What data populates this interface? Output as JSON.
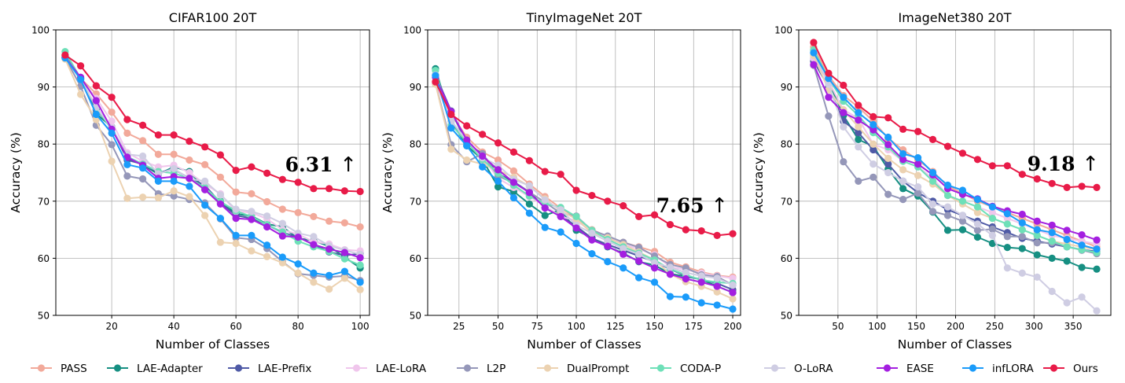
{
  "chart_data": [
    {
      "type": "line",
      "title": "CIFAR100 20T",
      "xlabel": "Number of Classes",
      "ylabel": "Accuracy (%)",
      "xlim": [
        2,
        103
      ],
      "ylim": [
        50,
        100
      ],
      "xticks": [
        20,
        40,
        60,
        80,
        100
      ],
      "yticks": [
        50,
        60,
        70,
        80,
        90,
        100
      ],
      "grid": true,
      "annotation": {
        "text": "6.31",
        "arrow": "↑"
      },
      "x": [
        5,
        10,
        15,
        20,
        25,
        30,
        35,
        40,
        45,
        50,
        55,
        60,
        65,
        70,
        75,
        80,
        85,
        90,
        95,
        100
      ],
      "series": [
        {
          "name": "PASS",
          "values": [
            95.4,
            91.5,
            88.8,
            85.6,
            81.9,
            80.6,
            78.2,
            78.2,
            77.2,
            76.4,
            74.2,
            71.6,
            71.3,
            69.9,
            68.6,
            68.0,
            67.3,
            66.5,
            66.2,
            65.5
          ]
        },
        {
          "name": "LAE-Adapter",
          "values": [
            95.6,
            91.5,
            85.3,
            83.0,
            77.4,
            76.4,
            74.7,
            76.0,
            75.2,
            72.1,
            70.0,
            67.8,
            67.4,
            66.0,
            65.5,
            63.5,
            63.1,
            62.1,
            60.2,
            58.3
          ]
        },
        {
          "name": "LAE-Prefix",
          "values": [
            95.2,
            91.5,
            86.0,
            82.9,
            77.2,
            76.5,
            75.0,
            75.6,
            74.0,
            72.8,
            69.7,
            67.5,
            67.0,
            65.9,
            64.5,
            63.7,
            62.4,
            61.1,
            60.5,
            60.8
          ]
        },
        {
          "name": "LAE-LoRA",
          "values": [
            95.0,
            91.5,
            88.0,
            84.0,
            78.5,
            77.0,
            76.0,
            76.3,
            75.0,
            73.0,
            71.3,
            68.2,
            68.0,
            66.9,
            65.0,
            64.2,
            62.9,
            62.5,
            61.5,
            61.3
          ]
        },
        {
          "name": "L2P",
          "values": [
            95.1,
            90.1,
            83.3,
            79.9,
            74.4,
            73.9,
            71.3,
            70.9,
            70.3,
            69.7,
            66.9,
            63.6,
            63.3,
            61.7,
            59.4,
            57.3,
            57.0,
            56.7,
            56.9,
            56.1
          ]
        },
        {
          "name": "DualPrompt",
          "values": [
            94.9,
            88.7,
            84.3,
            77.0,
            70.5,
            70.7,
            70.6,
            71.8,
            70.8,
            67.5,
            62.8,
            62.6,
            61.3,
            60.3,
            59.2,
            57.4,
            55.8,
            54.6,
            56.5,
            54.5
          ]
        },
        {
          "name": "CODA-P",
          "values": [
            96.2,
            91.5,
            86.3,
            82.6,
            77.8,
            76.5,
            75.2,
            74.9,
            74.0,
            72.4,
            69.9,
            68.3,
            67.3,
            65.9,
            64.6,
            63.0,
            62.0,
            61.2,
            59.9,
            58.8
          ]
        },
        {
          "name": "O-LoRA",
          "values": [
            95.4,
            91.3,
            86.5,
            82.8,
            78.2,
            77.9,
            74.8,
            75.7,
            73.9,
            73.5,
            71.1,
            68.6,
            68.2,
            67.4,
            66.1,
            64.4,
            63.8,
            62.2,
            61.4,
            60.7
          ]
        },
        {
          "name": "EASE",
          "values": [
            95.2,
            91.7,
            87.6,
            82.6,
            77.7,
            76.3,
            74.0,
            74.3,
            74.0,
            72.0,
            69.5,
            67.0,
            66.8,
            65.5,
            63.9,
            63.7,
            62.4,
            61.6,
            61.0,
            60.1
          ]
        },
        {
          "name": "infLORA",
          "values": [
            95.1,
            91.3,
            85.2,
            81.9,
            76.4,
            75.8,
            73.5,
            73.5,
            72.6,
            69.3,
            67.0,
            64.0,
            64.0,
            62.3,
            60.2,
            59.0,
            57.4,
            57.0,
            57.7,
            55.8
          ]
        },
        {
          "name": "Ours",
          "values": [
            95.6,
            93.7,
            90.2,
            88.2,
            84.3,
            83.3,
            81.6,
            81.6,
            80.5,
            79.5,
            78.1,
            75.4,
            76.0,
            74.9,
            73.8,
            73.3,
            72.2,
            72.2,
            71.8,
            71.7
          ]
        }
      ]
    },
    {
      "type": "line",
      "title": "TinyImageNet 20T",
      "xlabel": "Number of Classes",
      "ylabel": "Accuracy (%)",
      "xlim": [
        5,
        205
      ],
      "ylim": [
        50,
        100
      ],
      "xticks": [
        25,
        50,
        75,
        100,
        125,
        150,
        175,
        200
      ],
      "yticks": [
        50,
        60,
        70,
        80,
        90,
        100
      ],
      "grid": true,
      "annotation": {
        "text": "7.65",
        "arrow": "↑"
      },
      "x": [
        10,
        20,
        30,
        40,
        50,
        60,
        70,
        80,
        90,
        100,
        110,
        120,
        130,
        140,
        150,
        160,
        170,
        180,
        190,
        200
      ],
      "series": [
        {
          "name": "PASS",
          "values": [
            91.0,
            85.2,
            81.2,
            78.6,
            77.2,
            75.3,
            73.0,
            70.8,
            68.8,
            67.1,
            65.0,
            63.8,
            62.8,
            62.0,
            61.2,
            59.3,
            58.5,
            57.6,
            57.0,
            56.7
          ]
        },
        {
          "name": "LAE-Adapter",
          "values": [
            93.2,
            84.0,
            79.7,
            77.3,
            72.5,
            71.7,
            69.5,
            67.5,
            68.5,
            64.9,
            63.6,
            62.0,
            60.9,
            59.4,
            58.8,
            57.3,
            56.8,
            56.3,
            55.1,
            54.0
          ]
        },
        {
          "name": "LAE-Prefix",
          "values": [
            92.1,
            85.8,
            80.1,
            78.3,
            74.8,
            73.4,
            71.6,
            68.9,
            67.5,
            65.6,
            63.5,
            62.4,
            61.4,
            60.4,
            59.4,
            58.1,
            56.9,
            56.3,
            55.6,
            54.5
          ]
        },
        {
          "name": "LAE-LoRA",
          "values": [
            90.8,
            84.1,
            80.5,
            77.8,
            74.0,
            72.4,
            70.8,
            69.2,
            67.3,
            66.6,
            64.7,
            63.7,
            62.5,
            61.6,
            60.6,
            58.5,
            58.0,
            57.4,
            56.9,
            56.5
          ]
        },
        {
          "name": "L2P",
          "values": [
            90.6,
            79.9,
            76.9,
            78.3,
            74.4,
            73.2,
            71.6,
            69.8,
            67.9,
            67.4,
            64.9,
            63.9,
            62.8,
            61.9,
            60.4,
            58.9,
            58.3,
            57.1,
            56.8,
            55.3
          ]
        },
        {
          "name": "DualPrompt",
          "values": [
            90.5,
            79.1,
            77.2,
            76.5,
            75.4,
            74.2,
            72.6,
            70.4,
            68.3,
            66.9,
            64.4,
            63.6,
            62.4,
            61.1,
            59.7,
            57.2,
            55.9,
            55.1,
            54.1,
            52.9
          ]
        },
        {
          "name": "CODA-P",
          "values": [
            92.9,
            83.4,
            80.3,
            77.3,
            74.9,
            72.8,
            70.9,
            69.6,
            68.9,
            67.3,
            64.9,
            63.3,
            62.0,
            60.9,
            59.7,
            58.1,
            57.1,
            56.2,
            55.8,
            55.6
          ]
        },
        {
          "name": "O-LoRA",
          "values": [
            92.1,
            84.0,
            80.7,
            77.6,
            76.3,
            73.8,
            72.7,
            70.2,
            68.5,
            65.8,
            64.4,
            63.0,
            61.7,
            60.7,
            59.2,
            58.4,
            57.5,
            56.9,
            56.5,
            55.3
          ]
        },
        {
          "name": "EASE",
          "values": [
            91.7,
            85.7,
            80.7,
            77.9,
            75.5,
            73.3,
            71.5,
            68.8,
            67.3,
            65.3,
            63.2,
            62.1,
            60.7,
            59.5,
            58.3,
            57.2,
            56.4,
            55.8,
            55.1,
            54.0
          ]
        },
        {
          "name": "infLORA",
          "values": [
            92.0,
            82.8,
            79.7,
            76.0,
            73.5,
            70.6,
            67.9,
            65.4,
            64.6,
            62.6,
            60.8,
            59.4,
            58.3,
            56.6,
            55.8,
            53.3,
            53.2,
            52.2,
            51.8,
            51.1
          ]
        },
        {
          "name": "Ours",
          "values": [
            90.9,
            85.2,
            83.2,
            81.7,
            80.2,
            78.6,
            77.1,
            75.2,
            74.7,
            71.9,
            71.0,
            70.0,
            69.2,
            67.3,
            67.6,
            65.9,
            65.0,
            64.8,
            64.0,
            64.3
          ]
        }
      ]
    },
    {
      "type": "line",
      "title": "ImageNet380 20T",
      "xlabel": "Number of Classes",
      "ylabel": "Accuracy (%)",
      "xlim": [
        0,
        398
      ],
      "ylim": [
        50,
        100
      ],
      "xticks": [
        50,
        100,
        150,
        200,
        250,
        300,
        350
      ],
      "yticks": [
        50,
        60,
        70,
        80,
        90,
        100
      ],
      "grid": true,
      "annotation": {
        "text": "9.18",
        "arrow": "↑"
      },
      "x": [
        19,
        38,
        57,
        76,
        95,
        114,
        133,
        152,
        171,
        190,
        209,
        228,
        247,
        266,
        285,
        304,
        323,
        342,
        361,
        380
      ],
      "series": [
        {
          "name": "PASS",
          "values": [
            97.0,
            92.0,
            88.5,
            86.5,
            84.0,
            81.0,
            79.0,
            77.2,
            75.2,
            72.6,
            71.4,
            70.0,
            69.0,
            68.0,
            67.0,
            66.0,
            65.0,
            64.0,
            63.0,
            62.0
          ]
        },
        {
          "name": "LAE-Adapter",
          "values": [
            95.0,
            91.0,
            85.0,
            80.8,
            79.6,
            75.6,
            72.2,
            70.9,
            68.1,
            64.9,
            65.0,
            63.7,
            62.6,
            61.9,
            61.7,
            60.6,
            60.0,
            59.5,
            58.4,
            58.1
          ]
        },
        {
          "name": "LAE-Prefix",
          "values": [
            94.5,
            90.0,
            84.0,
            82.0,
            79.0,
            76.5,
            73.5,
            71.5,
            70.0,
            68.5,
            67.5,
            66.5,
            65.5,
            64.5,
            63.5,
            63.0,
            62.5,
            62.0,
            61.5,
            61.2
          ]
        },
        {
          "name": "LAE-LoRA",
          "values": [
            95.0,
            91.0,
            86.0,
            84.5,
            80.0,
            79.0,
            77.0,
            76.0,
            74.0,
            71.0,
            70.0,
            69.0,
            68.0,
            67.0,
            66.0,
            65.0,
            64.0,
            63.5,
            63.0,
            62.5
          ]
        },
        {
          "name": "L2P",
          "values": [
            93.8,
            84.9,
            76.9,
            73.5,
            74.2,
            71.2,
            70.3,
            71.4,
            68.2,
            67.5,
            66.5,
            64.9,
            65.1,
            63.8,
            63.8,
            62.7,
            62.7,
            62.1,
            61.4,
            60.8
          ]
        },
        {
          "name": "DualPrompt",
          "values": [
            95.5,
            89.5,
            86.0,
            83.0,
            80.0,
            77.5,
            75.5,
            74.5,
            73.0,
            71.0,
            69.5,
            68.0,
            67.0,
            66.0,
            65.0,
            64.0,
            63.0,
            62.5,
            62.0,
            61.5
          ]
        },
        {
          "name": "CODA-P",
          "values": [
            96.5,
            91.5,
            87.5,
            85.0,
            82.0,
            79.5,
            77.0,
            76.0,
            73.5,
            71.0,
            70.0,
            69.0,
            67.0,
            66.0,
            65.0,
            64.0,
            63.0,
            62.0,
            61.5,
            61.0
          ]
        },
        {
          "name": "O-LoRA",
          "values": [
            96.0,
            90.5,
            83.0,
            79.5,
            76.5,
            75.0,
            73.5,
            72.5,
            69.5,
            69.0,
            67.5,
            66.0,
            64.0,
            58.3,
            57.4,
            56.7,
            54.2,
            52.2,
            53.2,
            50.8
          ]
        },
        {
          "name": "EASE",
          "values": [
            93.9,
            88.2,
            85.5,
            84.2,
            82.5,
            79.9,
            77.3,
            76.5,
            74.6,
            72.2,
            71.2,
            70.4,
            69.1,
            68.3,
            67.7,
            66.5,
            65.8,
            64.9,
            64.1,
            63.2
          ]
        },
        {
          "name": "infLORA",
          "values": [
            96.0,
            91.5,
            88.2,
            85.5,
            83.4,
            81.2,
            78.3,
            77.6,
            75.0,
            72.8,
            71.9,
            70.3,
            69.0,
            67.8,
            66.2,
            65.0,
            64.5,
            63.3,
            62.3,
            61.6
          ]
        },
        {
          "name": "Ours",
          "values": [
            97.8,
            92.4,
            90.3,
            86.8,
            84.8,
            84.6,
            82.6,
            82.2,
            80.8,
            79.6,
            78.4,
            77.3,
            76.2,
            76.2,
            74.7,
            73.9,
            73.1,
            72.4,
            72.6,
            72.4
          ]
        }
      ]
    }
  ],
  "legend": {
    "placement": "bottom",
    "items": [
      {
        "name": "PASS",
        "color": "#f2a99a"
      },
      {
        "name": "LAE-Adapter",
        "color": "#168f82"
      },
      {
        "name": "LAE-Prefix",
        "color": "#4f5aa6"
      },
      {
        "name": "LAE-LoRA",
        "color": "#f0c6ec"
      },
      {
        "name": "L2P",
        "color": "#9597b9"
      },
      {
        "name": "DualPrompt",
        "color": "#ecd2b1"
      },
      {
        "name": "CODA-P",
        "color": "#6ee0b8"
      },
      {
        "name": "O-LoRA",
        "color": "#cfcde3"
      },
      {
        "name": "EASE",
        "color": "#a41fe0"
      },
      {
        "name": "infLORA",
        "color": "#1a9bfa"
      },
      {
        "name": "Ours",
        "color": "#e81b48"
      }
    ]
  }
}
